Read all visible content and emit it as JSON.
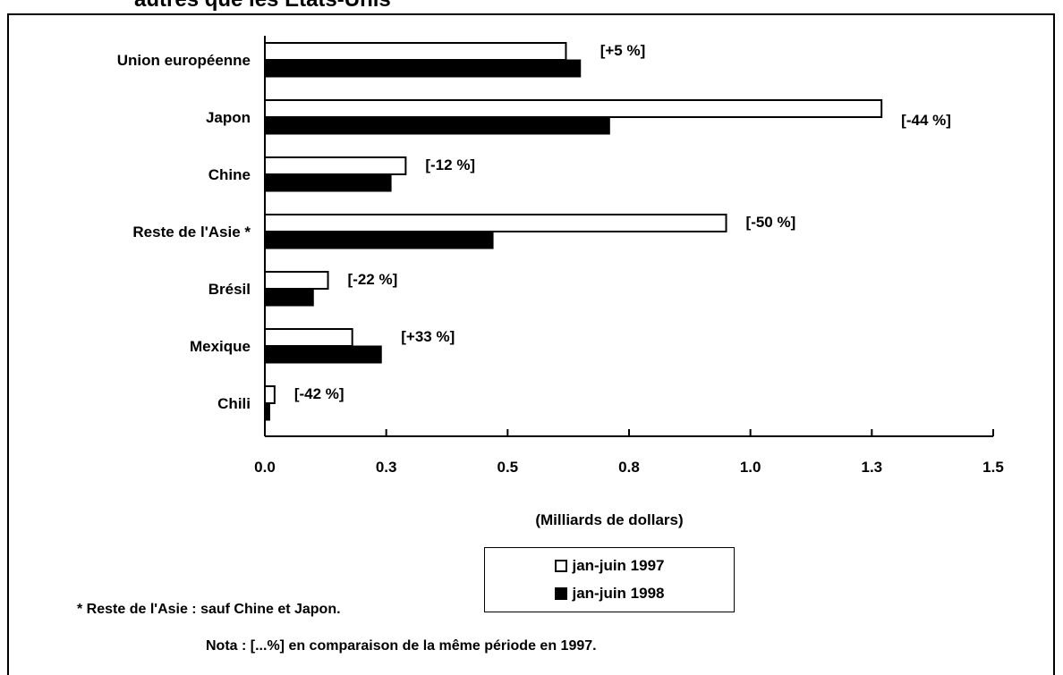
{
  "page_title": "autres que les États-Unis",
  "chart_data": {
    "type": "bar",
    "orientation": "horizontal",
    "categories": [
      "Union européenne",
      "Japon",
      "Chine",
      "Reste de l'Asie *",
      "Brésil",
      "Mexique",
      "Chili"
    ],
    "series": [
      {
        "name": "jan-juin 1997",
        "values": [
          0.62,
          1.27,
          0.29,
          0.95,
          0.13,
          0.18,
          0.02
        ],
        "color": "#ffffff"
      },
      {
        "name": "jan-juin 1998",
        "values": [
          0.65,
          0.71,
          0.26,
          0.47,
          0.1,
          0.24,
          0.01
        ],
        "color": "#000000"
      }
    ],
    "changes": [
      "[+5 %]",
      "[-44 %]",
      "[-12 %]",
      "[-50 %]",
      "[-22 %]",
      "[+33 %]",
      "[-42 %]"
    ],
    "xlim": [
      0,
      1.5
    ],
    "xticks": [
      0,
      0.25,
      0.5,
      0.75,
      1.0,
      1.25,
      1.5
    ],
    "xtick_labels": [
      "0.0",
      "0.3",
      "0.5",
      "0.8",
      "1.0",
      "1.3",
      "1.5"
    ],
    "xlabel": "(Milliards de dollars)",
    "title": "",
    "ylabel": "",
    "grid": false,
    "legend": "bottom-center"
  },
  "footnote": "* Reste de l'Asie : sauf Chine et Japon.",
  "nota": "Nota : [...%] en comparaison de la même période en 1997."
}
